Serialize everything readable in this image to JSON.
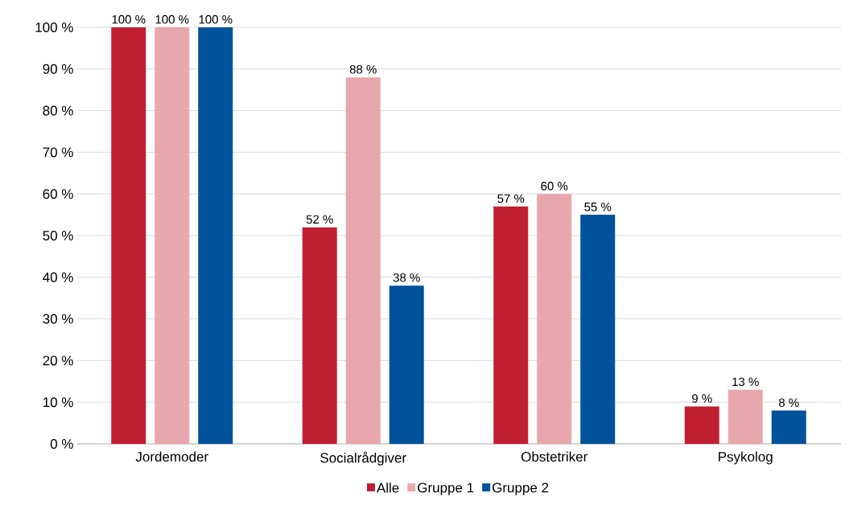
{
  "chart_data": {
    "type": "bar",
    "categories": [
      "Jordemoder",
      "Socialrådgiver",
      "Obstetriker",
      "Psykolog"
    ],
    "series": [
      {
        "name": "Alle",
        "color": "#c01f32",
        "values": [
          100,
          52,
          57,
          9
        ],
        "value_labels": [
          "100 %",
          "52 %",
          "57 %",
          "9 %"
        ]
      },
      {
        "name": "Gruppe 1",
        "color": "#e8a7ac",
        "values": [
          100,
          88,
          60,
          13
        ],
        "value_labels": [
          "100 %",
          "88 %",
          "60 %",
          "13 %"
        ]
      },
      {
        "name": "Gruppe 2",
        "color": "#00529b",
        "values": [
          100,
          38,
          55,
          8
        ],
        "value_labels": [
          "100 %",
          "38 %",
          "55 %",
          "8 %"
        ]
      }
    ],
    "ylim": [
      0,
      100
    ],
    "yticks": [
      {
        "value": 0,
        "label": "0 %"
      },
      {
        "value": 10,
        "label": "10 %"
      },
      {
        "value": 20,
        "label": "20 %"
      },
      {
        "value": 30,
        "label": "30 %"
      },
      {
        "value": 40,
        "label": "40 %"
      },
      {
        "value": 50,
        "label": "50 %"
      },
      {
        "value": 60,
        "label": "60 %"
      },
      {
        "value": 70,
        "label": "70 %"
      },
      {
        "value": 80,
        "label": "80 %"
      },
      {
        "value": 90,
        "label": "90 %"
      },
      {
        "value": 100,
        "label": "100 %"
      }
    ],
    "grid": "y",
    "legend": "bottom"
  }
}
